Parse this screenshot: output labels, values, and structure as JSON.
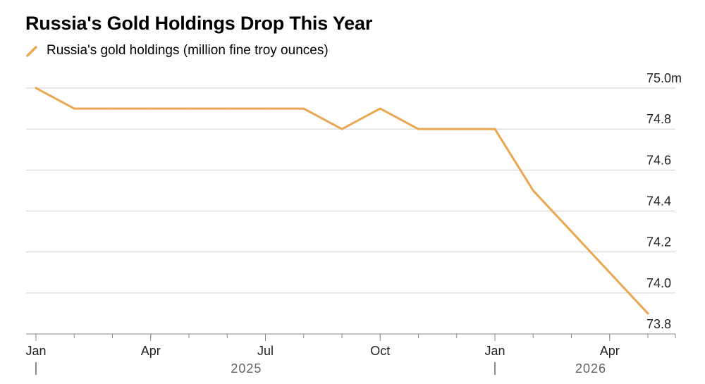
{
  "chart_data": {
    "type": "line",
    "title": "Russia's Gold Holdings Drop This Year",
    "xlabel": "",
    "ylabel": "",
    "ylim": [
      73.8,
      75.0
    ],
    "y_ticks": [
      75.0,
      74.8,
      74.6,
      74.4,
      74.2,
      74.0,
      73.8
    ],
    "y_tick_labels": [
      "75.0m",
      "74.8",
      "74.6",
      "74.4",
      "74.2",
      "74.0",
      "73.8"
    ],
    "y_axis_position": "right",
    "grid": true,
    "legend": "top-left",
    "x_ticks": [
      "2025-01",
      "2025-04",
      "2025-07",
      "2025-10",
      "2026-01",
      "2026-04"
    ],
    "x_tick_labels": [
      "Jan",
      "Apr",
      "Jul",
      "Oct",
      "Jan",
      "Apr"
    ],
    "year_labels": [
      {
        "label": "2025",
        "from": "2025-01",
        "to": "2025-12"
      },
      {
        "label": "2026",
        "from": "2026-01",
        "to": "2026-05"
      }
    ],
    "series": [
      {
        "name": "Russia's gold holdings (million fine troy ounces)",
        "color": "#eba651",
        "x": [
          "2025-01",
          "2025-02",
          "2025-03",
          "2025-04",
          "2025-05",
          "2025-06",
          "2025-07",
          "2025-08",
          "2025-09",
          "2025-10",
          "2025-11",
          "2025-12",
          "2026-01",
          "2026-02",
          "2026-03",
          "2026-04",
          "2026-05"
        ],
        "values": [
          75.0,
          74.9,
          74.9,
          74.9,
          74.9,
          74.9,
          74.9,
          74.9,
          74.8,
          74.9,
          74.8,
          74.8,
          74.8,
          74.5,
          74.3,
          74.1,
          73.9
        ]
      }
    ]
  }
}
